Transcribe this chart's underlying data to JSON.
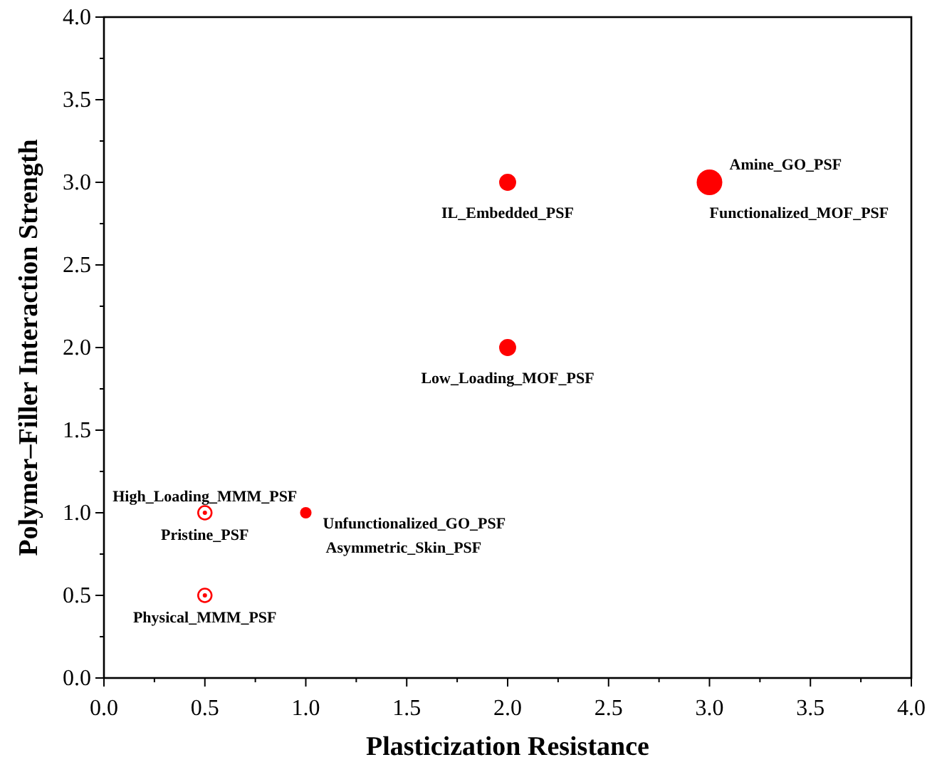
{
  "chart_data": {
    "type": "bubble",
    "xlabel": "Plasticization Resistance",
    "ylabel": "Polymer–Filler Interaction Strength",
    "xlim": [
      0,
      4
    ],
    "ylim": [
      0,
      4
    ],
    "xticks": [
      {
        "value": 0,
        "label": "0.0"
      },
      0.5,
      {
        "value": 1,
        "label": "1.0"
      },
      1.5,
      {
        "value": 2,
        "label": "2.0"
      },
      2.5,
      {
        "value": 3,
        "label": "3.0"
      },
      3.5,
      {
        "value": 4,
        "label": "4.0"
      }
    ],
    "yticks": [
      {
        "value": 0,
        "label": "0.0"
      },
      0.5,
      {
        "value": 1,
        "label": "1.0"
      },
      1.5,
      {
        "value": 2,
        "label": "2.0"
      },
      2.5,
      {
        "value": 3,
        "label": "3.0"
      },
      3.5,
      {
        "value": 4,
        "label": "4.0"
      }
    ],
    "grid": false,
    "relative": false,
    "series": [
      {
        "color": "#ff0000",
        "x": [
          3,
          2,
          2,
          1
        ],
        "values": [
          3,
          3,
          2,
          1
        ],
        "sizes": [
          1,
          0.44,
          0.44,
          0.2
        ]
      },
      {
        "type": "scatter",
        "marker": "circle",
        "color": "#ff0000",
        "x": [
          0.5,
          0.5
        ],
        "values": [
          1,
          0.5
        ]
      }
    ],
    "annotations": [
      {
        "text": "Amine_GO_PSF",
        "x": 3,
        "y": 3
      },
      {
        "text": "Functionalized_MOF_PSF",
        "x": 3,
        "y": 3
      },
      {
        "text": "IL_Embedded_PSF",
        "x": 2,
        "y": 3
      },
      {
        "text": "Low_Loading_MOF_PSF",
        "x": 2,
        "y": 2
      },
      {
        "text": "High_Loading_MMM_PSF",
        "x": 0.5,
        "y": 1
      },
      {
        "text": "Pristine_PSF",
        "x": 0.5,
        "y": 1
      },
      {
        "text": "Unfunctionalized_GO_PSF",
        "x": 1,
        "y": 1
      },
      {
        "text": "Asymmetric_Skin_PSF",
        "x": 1,
        "y": 1
      },
      {
        "text": "Physical_MMM_PSF",
        "x": 0.5,
        "y": 0.5
      }
    ]
  }
}
